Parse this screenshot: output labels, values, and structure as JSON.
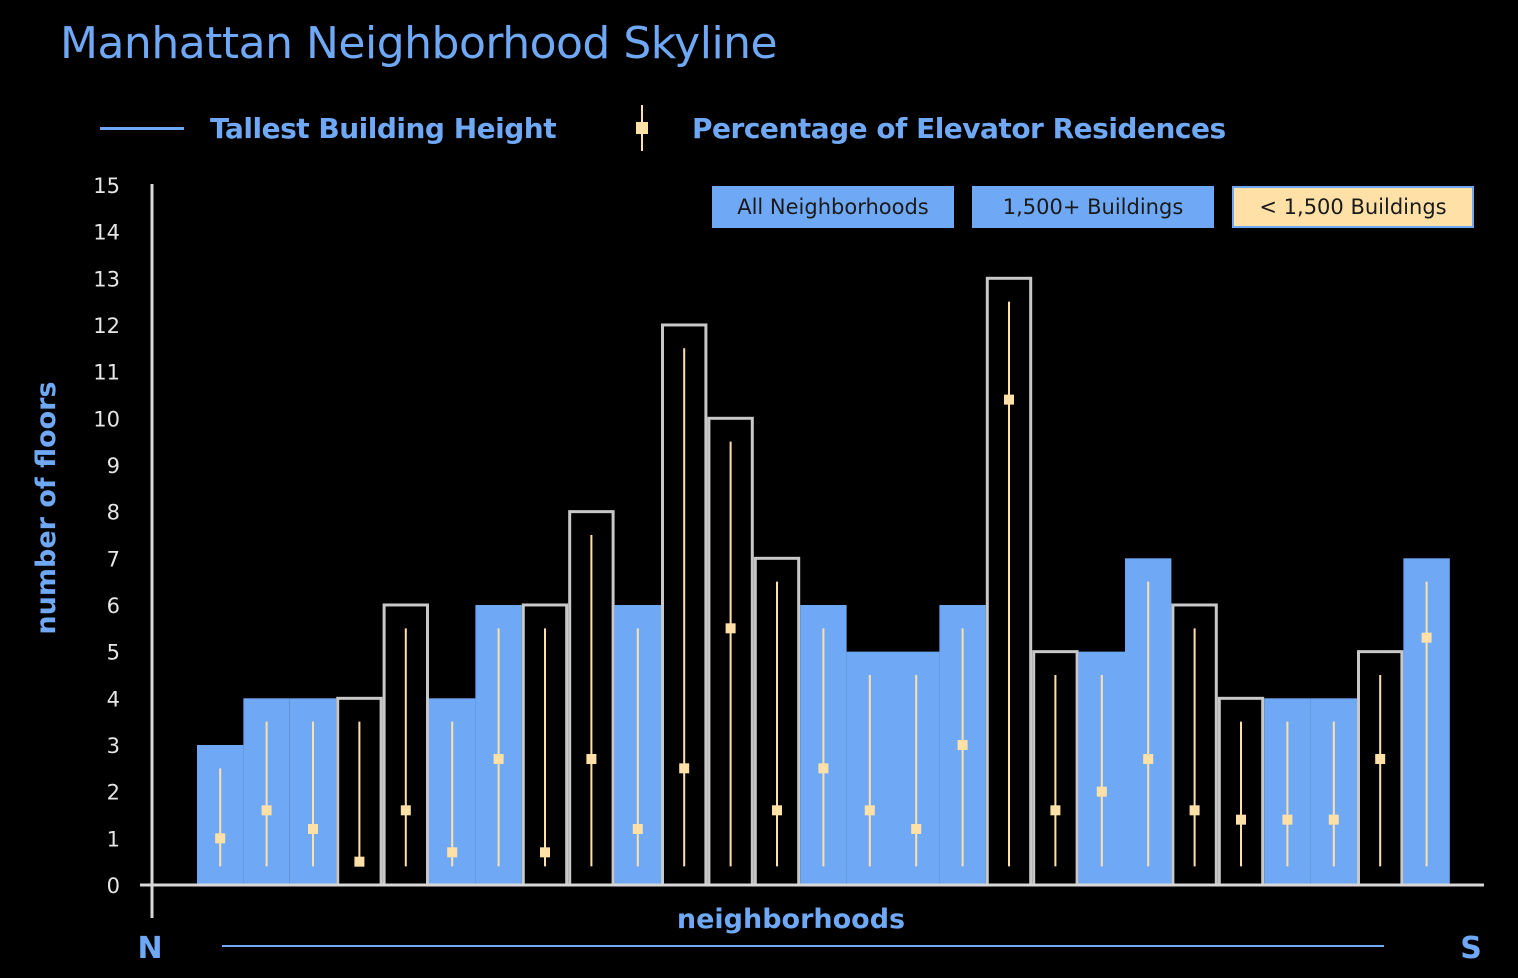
{
  "title": "Manhattan Neighborhood Skyline",
  "legend": {
    "line_label": "Tallest Building Height",
    "errorbar_label": "Percentage of Elevator Residences"
  },
  "filters": [
    {
      "label": "All Neighborhoods"
    },
    {
      "label": "1,500+ Buildings"
    },
    {
      "label": "< 1,500 Buildings"
    }
  ],
  "direction": {
    "start": "N",
    "end": "S"
  },
  "colors": {
    "accent": "#6fa8f5",
    "bar_outline": "#c8c8c8",
    "marker": "#ffe1a8",
    "filter_highlight": "#ffe1a8",
    "background": "#000000"
  },
  "chart_data": {
    "type": "bar",
    "xlabel": "neighborhoods",
    "ylabel": "number of floors",
    "ylim": [
      0,
      15
    ],
    "yticks": [
      0,
      1,
      2,
      3,
      4,
      5,
      6,
      7,
      8,
      9,
      10,
      11,
      12,
      13,
      14,
      15
    ],
    "grid": false,
    "legend_position": "top",
    "series": [
      {
        "name": "Tallest Building Height",
        "values": [
          3,
          4,
          4,
          4,
          6,
          4,
          6,
          6,
          8,
          6,
          12,
          10,
          7,
          6,
          5,
          5,
          6,
          13,
          5,
          5,
          7,
          6,
          4,
          4,
          4,
          5,
          7
        ]
      },
      {
        "name": "Percentage of Elevator Residences",
        "values": [
          1.0,
          1.6,
          1.2,
          0.5,
          1.6,
          0.7,
          2.7,
          0.7,
          2.7,
          1.2,
          2.5,
          5.5,
          1.6,
          2.5,
          1.6,
          1.2,
          3.0,
          10.4,
          1.6,
          2.0,
          2.7,
          1.6,
          1.4,
          1.4,
          1.4,
          2.7,
          5.3
        ],
        "error_high": [
          2.5,
          3.5,
          3.5,
          3.5,
          5.5,
          3.5,
          5.5,
          5.5,
          7.5,
          5.5,
          11.5,
          9.5,
          6.5,
          5.5,
          4.5,
          4.5,
          5.5,
          12.5,
          4.5,
          4.5,
          6.5,
          5.5,
          3.5,
          3.5,
          3.5,
          4.5,
          6.5
        ],
        "error_low": 0.4
      }
    ],
    "building_group": [
      "large",
      "large",
      "large",
      "small",
      "small",
      "large",
      "large",
      "small",
      "small",
      "large",
      "small",
      "small",
      "small",
      "large",
      "large",
      "large",
      "large",
      "small",
      "small",
      "large",
      "large",
      "small",
      "small",
      "large",
      "large",
      "small",
      "large"
    ]
  }
}
